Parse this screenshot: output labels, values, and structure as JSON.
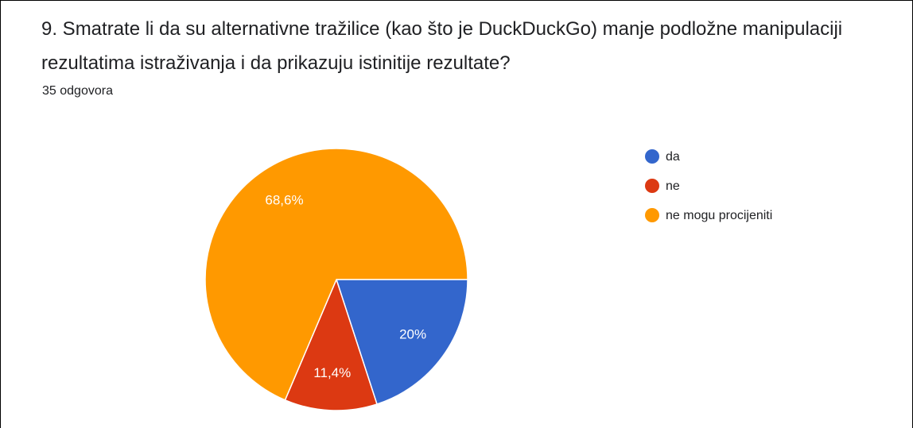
{
  "chart_data": {
    "type": "pie",
    "title": "9. Smatrate li da su alternativne tražilice (kao što je DuckDuckGo) manje podložne manipulaciji rezultatima istraživanja i da prikazuju istinitije rezultate?",
    "subtitle": "35 odgovora",
    "categories": [
      "da",
      "ne",
      "ne mogu procijeniti"
    ],
    "values": [
      20,
      11.4,
      68.6
    ],
    "value_labels": [
      "20%",
      "11,4%",
      "68,6%"
    ],
    "colors": [
      "#3366cc",
      "#dc3912",
      "#ff9900"
    ],
    "legend": "right"
  }
}
